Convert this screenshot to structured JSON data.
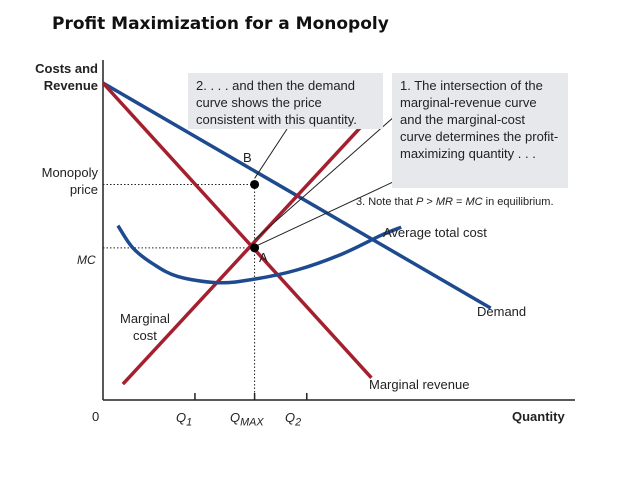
{
  "page": {
    "title": "Profit Maximization for a Monopoly"
  },
  "callouts": {
    "step1": "1. The intersection of the marginal-revenue curve and the marginal-cost curve determines the profit-maximizing quantity . . .",
    "step2": "2. . . . and then the demand curve shows the price consistent with this quantity.",
    "step3_prefix": "3. Note that ",
    "step3_P": "P",
    "step3_mid1": " > ",
    "step3_MR": "MR",
    "step3_mid2": " = ",
    "step3_MC": "MC",
    "step3_suffix": " in equilibrium."
  },
  "colors": {
    "red": "#a4202f",
    "blue": "#1e4a8f",
    "axis": "#222222"
  },
  "chart_data": {
    "type": "line",
    "title": "Profit Maximization for a Monopoly",
    "xlabel": "Quantity",
    "ylabel_line1": "Costs and",
    "ylabel_line2": "Revenue",
    "xlim": [
      0,
      10
    ],
    "ylim": [
      0,
      10
    ],
    "origin_label": "0",
    "x_ticks": [
      {
        "label": "Q",
        "sub": "1",
        "x": 1.85
      },
      {
        "label": "Q",
        "sub": "MAX",
        "x": 3.05
      },
      {
        "label": "Q",
        "sub": "2",
        "x": 4.1
      }
    ],
    "y_ticks": [
      {
        "label_line1": "Monopoly",
        "label_line2": "price",
        "y": 6.8
      },
      {
        "label": "MC",
        "y": 4.8
      }
    ],
    "series": [
      {
        "name": "Demand",
        "label": "Demand",
        "color": "blue",
        "points": [
          [
            0,
            10
          ],
          [
            7.8,
            2.9
          ]
        ]
      },
      {
        "name": "Marginal revenue",
        "label": "Marginal revenue",
        "color": "red",
        "points": [
          [
            0,
            10
          ],
          [
            5.4,
            0.7
          ]
        ]
      },
      {
        "name": "Marginal cost",
        "label_line1": "Marginal",
        "label_line2": "cost",
        "color": "red",
        "points": [
          [
            0.4,
            0.5
          ],
          [
            5.3,
            8.8
          ]
        ]
      },
      {
        "name": "Average total cost",
        "label": "Average total cost",
        "color": "blue",
        "points": [
          [
            0.3,
            5.5
          ],
          [
            0.6,
            4.8
          ],
          [
            1.0,
            4.3
          ],
          [
            1.5,
            3.9
          ],
          [
            2.3,
            3.7
          ],
          [
            3.0,
            3.8
          ],
          [
            3.9,
            4.1
          ],
          [
            4.8,
            4.6
          ],
          [
            5.6,
            5.2
          ],
          [
            6.0,
            5.45
          ]
        ]
      }
    ],
    "points": [
      {
        "name": "A",
        "label": "A",
        "x": 3.05,
        "y": 4.8
      },
      {
        "name": "B",
        "label": "B",
        "x": 3.05,
        "y": 6.8
      }
    ]
  }
}
